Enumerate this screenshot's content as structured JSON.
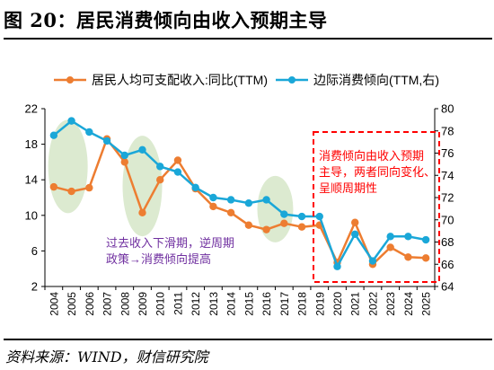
{
  "figure": {
    "title": "图 20：居民消费倾向由收入预期主导",
    "source": "资料来源：WIND，财信研究院"
  },
  "colors": {
    "income_series": "#ED7D31",
    "propensity_series": "#1AA7D8",
    "highlight_ellipse": "#D6E6C8",
    "box_border": "#FF0000",
    "box_text": "#FF0000",
    "note_text": "#7030A0"
  },
  "annotations": {
    "left_note_line1": "过去收入下滑期，逆周期",
    "left_note_line2": "政策→消费倾向提高",
    "box_line1": "消费倾向由收入预期",
    "box_line2": "主导，两者同向变化、",
    "box_line3": "呈顺周期性"
  },
  "chart_data": {
    "type": "line",
    "categories": [
      "2004",
      "2005",
      "2006",
      "2007",
      "2008",
      "2009",
      "2010",
      "2011",
      "2012",
      "2013",
      "2014",
      "2015",
      "2016",
      "2017",
      "2018",
      "2019",
      "2020",
      "2021",
      "2022",
      "2023",
      "2024",
      "2025"
    ],
    "series": [
      {
        "name": "居民人均可支配收入:同比(TTM)",
        "axis": "left",
        "values": [
          13.2,
          12.7,
          13.1,
          18.6,
          16.0,
          10.3,
          14.0,
          16.2,
          13.0,
          11.0,
          10.3,
          8.9,
          8.4,
          9.1,
          8.7,
          8.9,
          4.7,
          9.2,
          4.5,
          6.4,
          5.3,
          5.2
        ]
      },
      {
        "name": "边际消费倾向(TTM,右)",
        "axis": "right",
        "values": [
          77.6,
          78.9,
          77.9,
          77.1,
          75.8,
          76.3,
          74.8,
          74.3,
          72.9,
          72.0,
          71.8,
          71.5,
          71.8,
          70.5,
          70.3,
          70.3,
          65.8,
          68.7,
          66.3,
          68.5,
          68.5,
          68.2
        ]
      }
    ],
    "left_axis": {
      "ylim": [
        2,
        22
      ],
      "ticks": [
        2,
        6,
        10,
        14,
        18,
        22
      ]
    },
    "right_axis": {
      "ylim": [
        64,
        80
      ],
      "ticks": [
        64,
        66,
        68,
        70,
        72,
        74,
        76,
        78,
        80
      ]
    },
    "grid": false,
    "legend_position": "top"
  }
}
